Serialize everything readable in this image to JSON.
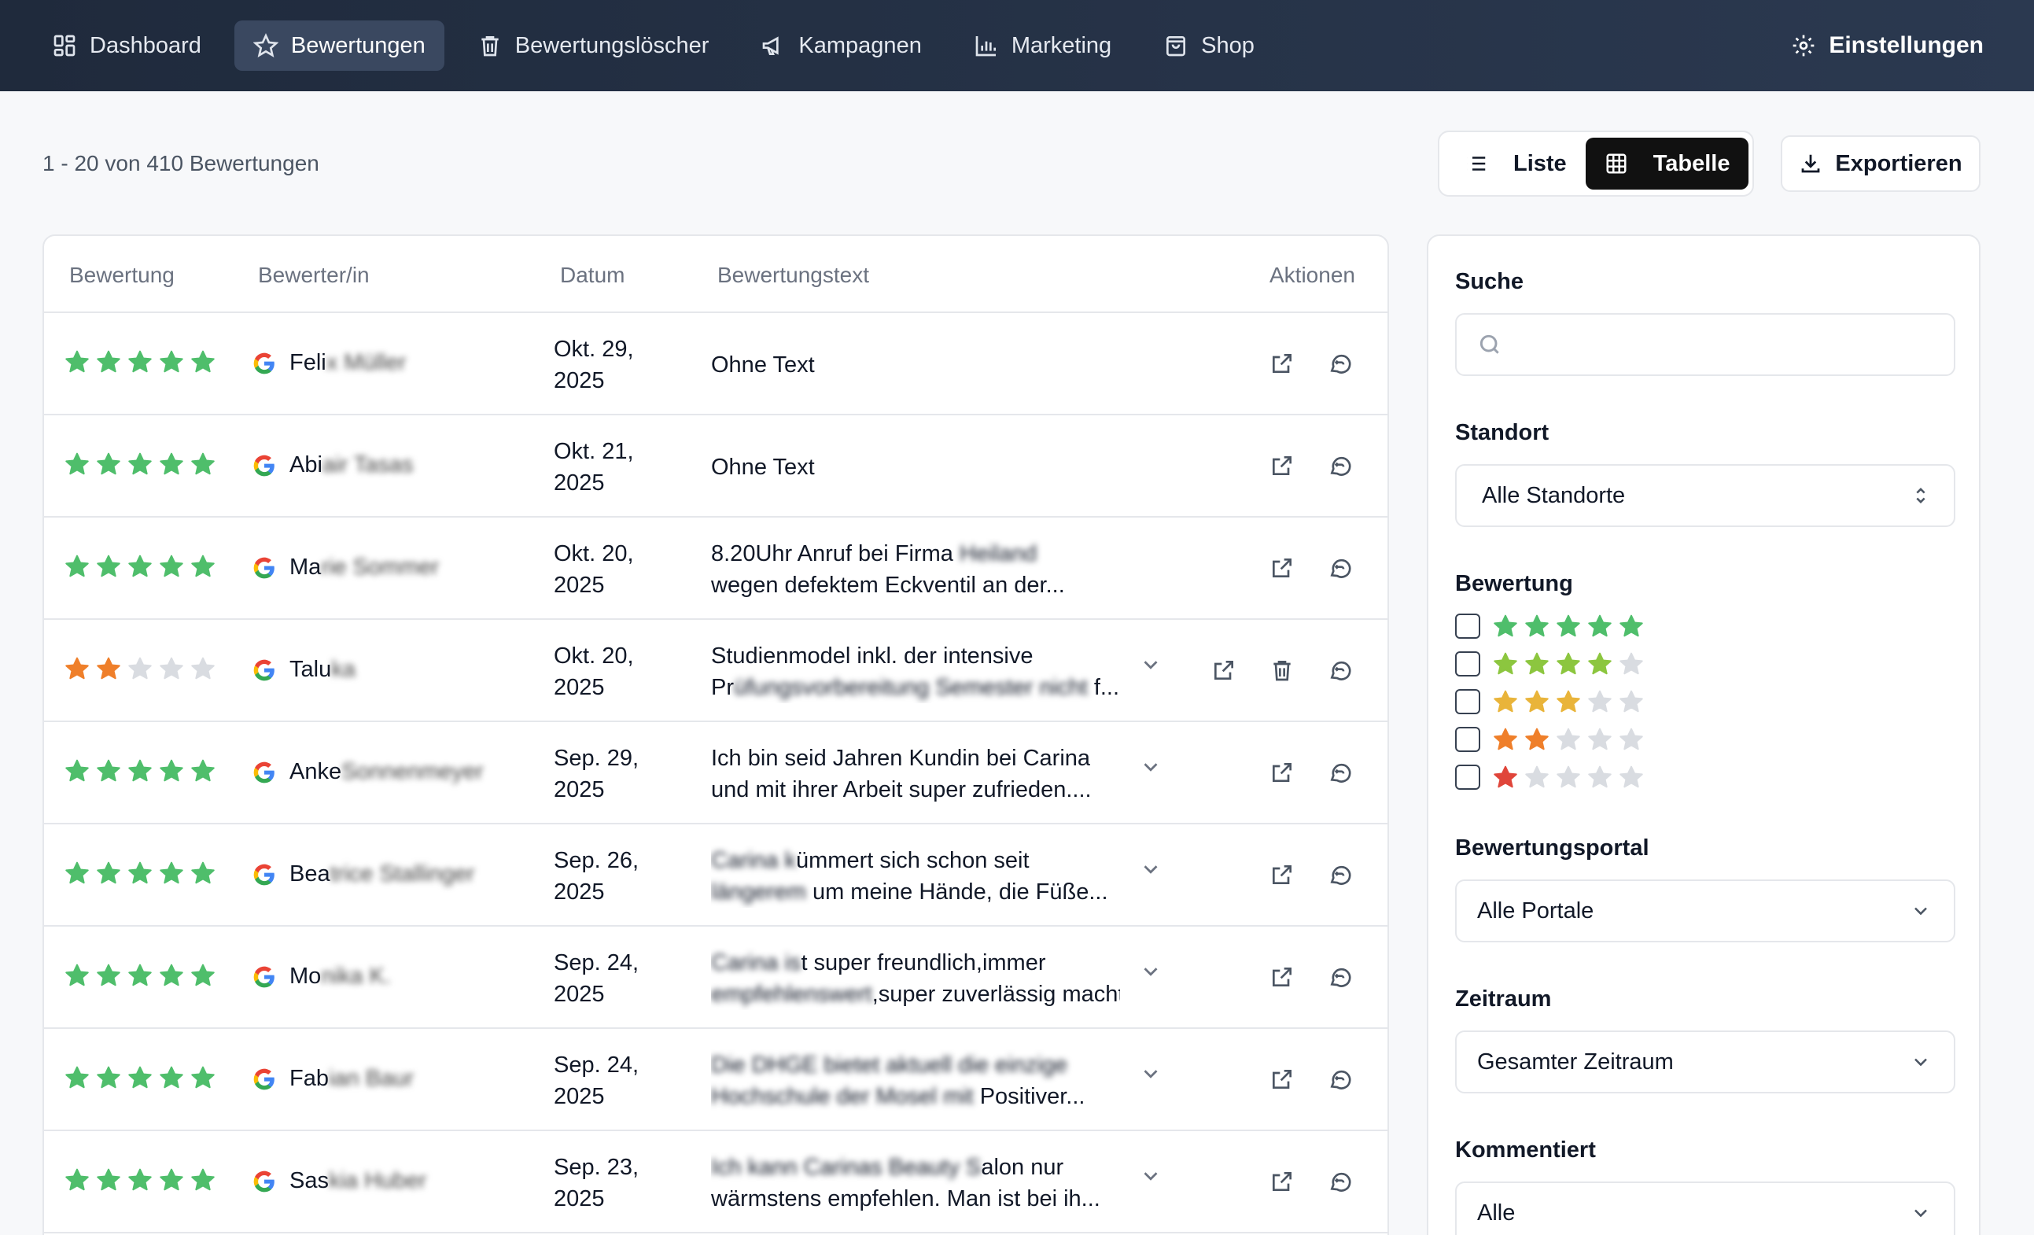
{
  "nav": {
    "items": [
      {
        "label": "Dashboard",
        "icon": "dashboard-icon",
        "active": false
      },
      {
        "label": "Bewertungen",
        "icon": "star-icon",
        "active": true
      },
      {
        "label": "Bewertungslöscher",
        "icon": "trash-icon",
        "active": false
      },
      {
        "label": "Kampagnen",
        "icon": "megaphone-icon",
        "active": false
      },
      {
        "label": "Marketing",
        "icon": "bar-chart-icon",
        "active": false
      },
      {
        "label": "Shop",
        "icon": "shopping-bag-icon",
        "active": false
      }
    ],
    "settings_label": "Einstellungen"
  },
  "header": {
    "range": "1 - 20",
    "of": "von",
    "total": "410",
    "unit": "Bewertungen",
    "view_list": "Liste",
    "view_table": "Tabelle",
    "active_view": "Tabelle",
    "export_label": "Exportieren"
  },
  "table": {
    "columns": [
      "Bewertung",
      "Bewerter/in",
      "Datum",
      "Bewertungstext",
      "Aktionen"
    ],
    "rows": [
      {
        "rating": 5,
        "name_visible": "Feli",
        "name_blurred": "x Müller",
        "date_line1": "Okt. 29,",
        "date_line2": "2025",
        "text_line1": "Ohne Text",
        "text_line2": "",
        "expandable": false,
        "deletable": false
      },
      {
        "rating": 5,
        "name_visible": "Abi",
        "name_blurred": "air Tasas",
        "date_line1": "Okt. 21,",
        "date_line2": "2025",
        "text_line1": "Ohne Text",
        "text_line2": "",
        "expandable": false,
        "deletable": false
      },
      {
        "rating": 5,
        "name_visible": "Ma",
        "name_blurred": "rie Sommer",
        "date_line1": "Okt. 20,",
        "date_line2": "2025",
        "text_line1": "8.20Uhr Anruf bei Firma",
        "text_line1_blurred": "Heiland",
        "text_line2": "wegen defektem Eckventil an der...",
        "expandable": false,
        "deletable": false
      },
      {
        "rating": 2,
        "name_visible": "Talu",
        "name_blurred": "ka",
        "date_line1": "Okt. 20,",
        "date_line2": "2025",
        "text_line1": "Studienmodel inkl. der intensive",
        "text_line2_visible": "Pr",
        "text_line2_blurred": "üfungsvorbereitung Semester nicht",
        "text_line2_tail": " f...",
        "expandable": true,
        "deletable": true
      },
      {
        "rating": 5,
        "name_visible": "Anke",
        "name_blurred": "Sonnenmeyer",
        "date_line1": "Sep. 29,",
        "date_line2": "2025",
        "text_line1": "Ich bin seid Jahren Kundin bei Carina",
        "text_line2": "und mit ihrer Arbeit super zufrieden....",
        "expandable": true,
        "deletable": false
      },
      {
        "rating": 5,
        "name_visible": "Bea",
        "name_blurred": "trice Stallinger",
        "date_line1": "Sep. 26,",
        "date_line2": "2025",
        "text_line1_blurred": "Carina k",
        "text_line1": "ümmert sich schon seit",
        "text_line2_blurred": "längerem",
        "text_line2": " um meine Hände, die Füße...",
        "expandable": true,
        "deletable": false
      },
      {
        "rating": 5,
        "name_visible": "Mo",
        "name_blurred": "nika K.",
        "date_line1": "Sep. 24,",
        "date_line2": "2025",
        "text_line1_blurred": "Carina is",
        "text_line1": "t super freundlich,immer",
        "text_line2_blurred": "empfehlenswert",
        "text_line2": ",super zuverlässig macht...",
        "expandable": true,
        "deletable": false
      },
      {
        "rating": 5,
        "name_visible": "Fab",
        "name_blurred": "ian Baur",
        "date_line1": "Sep. 24,",
        "date_line2": "2025",
        "text_line1_blurred": "Die DHGE bietet aktuell die einzige",
        "text_line1": "",
        "text_line2_blurred": "Hochschule der Mosel mit",
        "text_line2": " Positiver...",
        "expandable": true,
        "deletable": false
      },
      {
        "rating": 5,
        "name_visible": "Sas",
        "name_blurred": "kia Huber",
        "date_line1": "Sep. 23,",
        "date_line2": "2025",
        "text_line1_blurred": "Ich kann Carinas Beauty S",
        "text_line1": "alon nur",
        "text_line2": "wärmstens empfehlen. Man ist bei ih...",
        "expandable": true,
        "deletable": false
      }
    ]
  },
  "filters": {
    "search_label": "Suche",
    "search_placeholder": "",
    "location_label": "Standort",
    "location_value": "Alle Standorte",
    "rating_label": "Bewertung",
    "rating_options": [
      5,
      4,
      3,
      2,
      1
    ],
    "portal_label": "Bewertungsportal",
    "portal_value": "Alle Portale",
    "period_label": "Zeitraum",
    "period_value": "Gesamter Zeitraum",
    "commented_label": "Kommentiert",
    "commented_value": "Alle"
  },
  "colors": {
    "star_5": "#4fbe6b",
    "star_4": "#8cc63f",
    "star_3": "#e9b43a",
    "star_2": "#ef7f2a",
    "star_1": "#e0453a",
    "star_empty": "#d9dce1",
    "nav_bg": "#243147",
    "primary": "#111111"
  }
}
